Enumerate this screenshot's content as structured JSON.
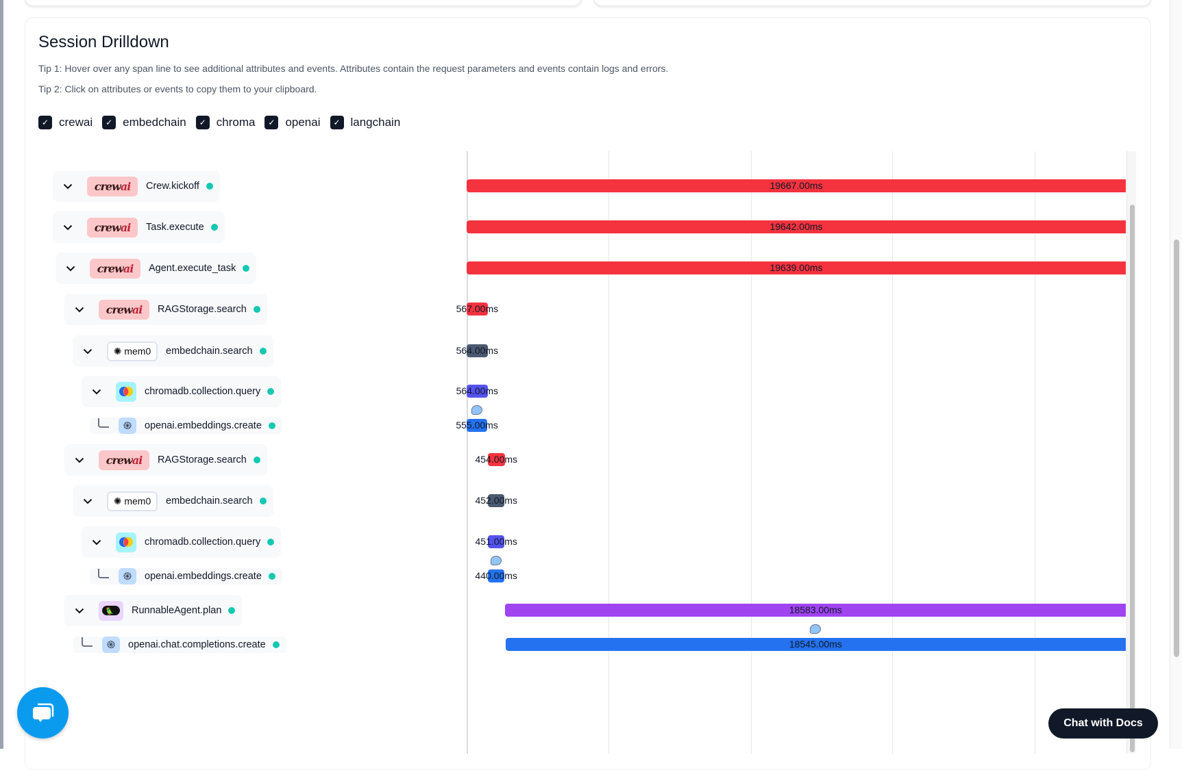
{
  "section": {
    "title": "Session Drilldown",
    "tip1": "Tip 1: Hover over any span line to see additional attributes and events. Attributes contain the request parameters and events contain logs and errors.",
    "tip2": "Tip 2: Click on attributes or events to copy them to your clipboard."
  },
  "filters": [
    {
      "label": "crewai",
      "checked": true
    },
    {
      "label": "embedchain",
      "checked": true
    },
    {
      "label": "chroma",
      "checked": true
    },
    {
      "label": "openai",
      "checked": true
    },
    {
      "label": "langchain",
      "checked": true
    }
  ],
  "badges": {
    "crewai": "crewai",
    "mem0": "mem0"
  },
  "spans": [
    {
      "name": "Crew.kickoff",
      "provider": "crewai",
      "depth": 0,
      "leaf": false,
      "duration": "19667.00ms",
      "duration_ms": 19667,
      "start_ms": 0,
      "color": "#f4333f"
    },
    {
      "name": "Task.execute",
      "provider": "crewai",
      "depth": 0,
      "leaf": false,
      "duration": "19642.00ms",
      "duration_ms": 19642,
      "start_ms": 0,
      "color": "#f4333f"
    },
    {
      "name": "Agent.execute_task",
      "provider": "crewai",
      "depth": 1,
      "leaf": false,
      "duration": "19639.00ms",
      "duration_ms": 19639,
      "start_ms": 0,
      "color": "#f4333f"
    },
    {
      "name": "RAGStorage.search",
      "provider": "crewai",
      "depth": 2,
      "leaf": false,
      "duration": "567.00ms",
      "duration_ms": 567,
      "start_ms": 0,
      "color": "#f4333f"
    },
    {
      "name": "embedchain.search",
      "provider": "mem0",
      "depth": 3,
      "leaf": false,
      "duration": "564.00ms",
      "duration_ms": 564,
      "start_ms": 0,
      "color": "#4b5a70"
    },
    {
      "name": "chromadb.collection.query",
      "provider": "chroma",
      "depth": 4,
      "leaf": false,
      "duration": "564.00ms",
      "duration_ms": 564,
      "start_ms": 0,
      "color": "#5553f0"
    },
    {
      "name": "openai.embeddings.create",
      "provider": "openai",
      "depth": 5,
      "leaf": true,
      "duration": "555.00ms",
      "duration_ms": 555,
      "start_ms": 0,
      "color": "#2472f0",
      "event": true
    },
    {
      "name": "RAGStorage.search",
      "provider": "crewai",
      "depth": 2,
      "leaf": false,
      "duration": "454.00ms",
      "duration_ms": 454,
      "start_ms": 570,
      "color": "#f4333f"
    },
    {
      "name": "embedchain.search",
      "provider": "mem0",
      "depth": 3,
      "leaf": false,
      "duration": "452.00ms",
      "duration_ms": 452,
      "start_ms": 570,
      "color": "#4b5a70"
    },
    {
      "name": "chromadb.collection.query",
      "provider": "chroma",
      "depth": 4,
      "leaf": false,
      "duration": "451.00ms",
      "duration_ms": 451,
      "start_ms": 570,
      "color": "#5553f0"
    },
    {
      "name": "openai.embeddings.create",
      "provider": "openai",
      "depth": 5,
      "leaf": true,
      "duration": "440.00ms",
      "duration_ms": 440,
      "start_ms": 575,
      "color": "#2472f0",
      "event": true
    },
    {
      "name": "RunnableAgent.plan",
      "provider": "langchain",
      "depth": 2,
      "leaf": false,
      "duration": "18583.00ms",
      "duration_ms": 18583,
      "start_ms": 1040,
      "color": "#a044f2"
    },
    {
      "name": "openai.chat.completions.create",
      "provider": "openai",
      "depth": 3,
      "leaf": true,
      "duration": "18545.00ms",
      "duration_ms": 18545,
      "start_ms": 1045,
      "color": "#2472f0",
      "event": true
    }
  ],
  "chat_widget": {
    "docs_label": "Chat with Docs"
  }
}
